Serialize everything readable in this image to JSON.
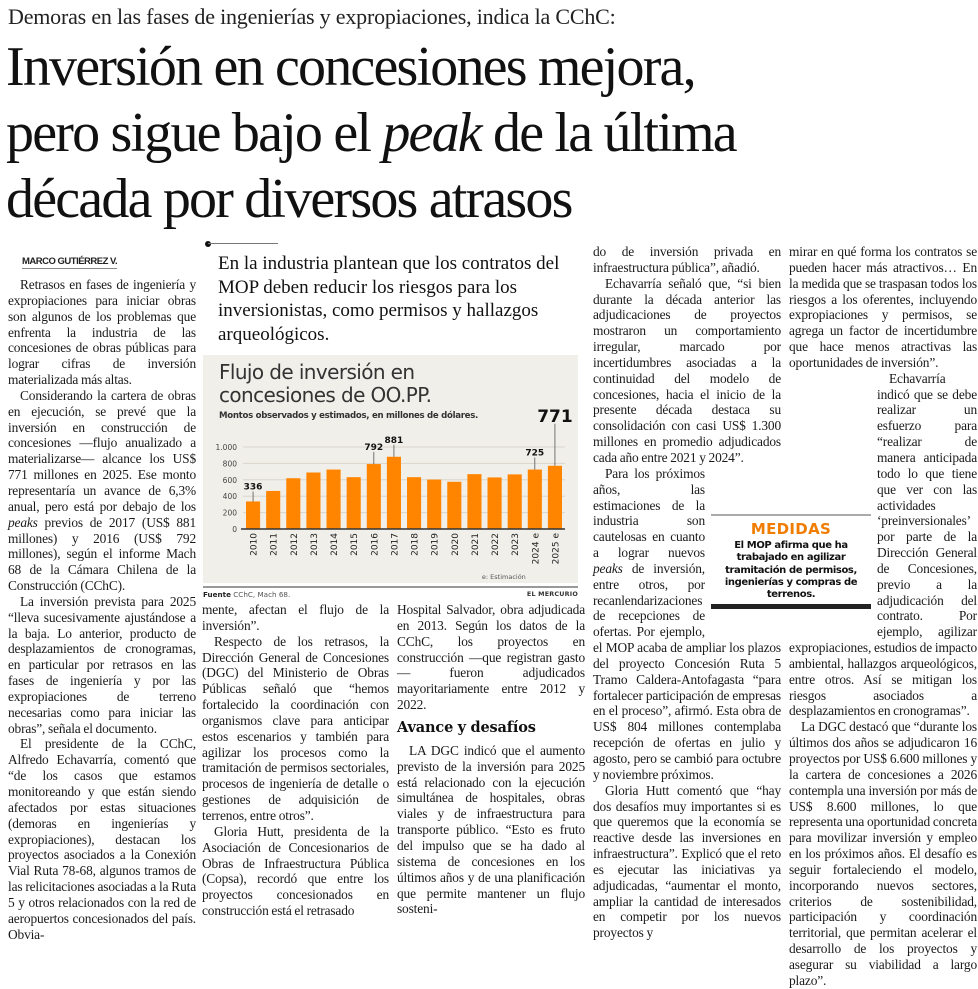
{
  "article": {
    "kicker": "Demoras en las fases de ingenierías y expropiaciones, indica la CChC:",
    "headline": {
      "line1": "Inversión en concesiones mejora,",
      "line2_pre": "pero sigue bajo el ",
      "line2_em": "peak",
      "line2_post": " de la última",
      "line3": "década por diversos atrasos"
    },
    "byline": "MARCO GUTIÉRREZ V.",
    "pullquote": "En la industria plantean que los contratos del MOP deben reducir los riesgos para los inversionistas, como permisos y hallazgos arqueológicos.",
    "paragraphs": {
      "p1": "Retrasos en fases de ingeniería y expropiaciones para iniciar obras son algunos de los problemas que enfrenta la industria de las concesiones de obras públicas para lograr cifras de inversión materializada más altas.",
      "p2_a": "Considerando la cartera de obras en ejecución, se prevé que la inversión en construcción de concesiones —flujo anualizado a materializarse— alcance los US$ 771 millones en 2025. Ese monto representaría un avance de 6,3% anual, pero está por debajo de los ",
      "p2_em": "peaks",
      "p2_b": " previos de 2017 (US$ 881 millones) y 2016 (US$ 792 millones), según el informe Mach 68 de la Cámara Chilena de la Construcción (CChC).",
      "p3": "La inversión prevista para 2025 “lleva sucesivamente ajustándose a la baja. Lo anterior, producto de desplazamientos de cronogramas, en particular por retrasos en las fases de ingeniería y por las expropiaciones de terreno necesarias como para iniciar las obras”, señala el documento.",
      "p4": "El presidente de la CChC, Alfredo Echavarría, comentó que “de los casos que estamos monitoreando y que están siendo afectados por estas situaciones (demoras en ingenierías y expropiaciones), destacan los proyectos asociados a la Conexión Vial Ruta 78-68, algunos tramos de las relicitaciones asociadas a la Ruta 5 y otros relacionados con la red de aeropuertos concesionados del país. Obviamente, afectan el flujo de la inversión”.",
      "p5": "Respecto de los retrasos, la Dirección General de Concesiones (DGC) del Ministerio de Obras Públicas señaló que “hemos fortalecido la coordinación con organismos clave para anticipar estos escenarios y también para agilizar los procesos como la tramitación de permisos sectoriales, procesos de ingeniería de detalle o gestiones de adquisición de terrenos, entre otros”.",
      "p6": "Gloria Hutt, presidenta de la Asociación de Concesionarios de Obras de Infraestructura Pública (Copsa), recordó que entre los proyectos concesionados en construcción está el retrasado Hospital Salvador, obra adjudicada en 2013. Según los datos de la CChC, los proyectos en construcción —que registran gasto— fueron adjudicados mayoritariamente entre 2012 y 2022.",
      "subhead": "Avance y desafíos",
      "p7": "LA DGC indicó que el aumento previsto de la inversión para 2025 está relacionado con la ejecución simultánea de hospitales, obras viales y de infraestructura para transporte público. “Esto es fruto del impulso que se ha dado al sistema de concesiones en los últimos años y de una planificación que permite mantener un flujo sostenido de inversión privada en infraestructura pública”, añadió.",
      "p8": "Echavarría señaló que, “si bien durante la década anterior las adjudicaciones de proyectos mostraron un comportamiento irregular, marcado por incertidumbres asociadas a la continuidad del modelo de concesiones, hacia el inicio de la presente década destaca su consolidación con casi US$ 1.300 millones en promedio adjudicados cada año entre 2021 y 2024”.",
      "p9_a": "Para los próximos años, las estimaciones de la industria son cautelosas en cuanto a lograr nuevos ",
      "p9_em": "peaks",
      "p9_b": " de inversión, entre otros, por recanlendarizaciones de recepciones de ofertas. Por ejemplo, el MOP acaba de ampliar los plazos del proyecto Concesión Ruta 5 Tramo Caldera-Antofagasta “para fortalecer participación de empresas en el proceso”, afirmó. Esta obra de US$ 804 millones contemplaba recepción de ofertas en julio y agosto, pero se cambió para octubre y noviembre próximos.",
      "p10": "Gloria Hutt comentó que “hay dos desafíos muy importantes si es que queremos que la economía se reactive desde las inversiones en infraestructura”. Explicó que el reto es ejecutar las iniciativas ya adjudicadas, “aumentar el monto, ampliar la cantidad de interesados en competir por los nuevos proyectos y mirar en qué forma los contratos se pueden hacer más atractivos… En la medida que se traspasan todos los riesgos a los oferentes, incluyendo expropiaciones y permisos, se agrega un factor de incertidumbre que hace menos atractivas las oportunidades de inversión”.",
      "p11": "Echavarría indicó que se debe realizar un esfuerzo para “realizar de manera anticipada todo lo que tiene que ver con las actividades ‘preinversionales’ por parte de la Dirección General de Concesiones, previo a la adjudicación del contrato. Por ejemplo, agilizar expropiaciones, estudios de impacto ambiental, hallazgos arqueológicos, entre otros. Así se mitigan los riesgos asociados a desplazamientos en cronogramas”.",
      "p12": "La DGC destacó que “durante los últimos dos años se adjudicaron 16 proyectos por US$ 6.600 millones y la cartera de concesiones a 2026 contempla una inversión por más de US$ 8.600 millones, lo que representa una oportunidad concreta para movilizar inversión y empleo en los próximos años. El desafío es seguir fortaleciendo el modelo, incorporando nuevos sectores, criterios de sostenibilidad, participación y coordinación territorial, que permitan acelerar el desarrollo de los proyectos y asegurar su viabilidad a largo plazo”."
    },
    "sidebar": {
      "title": "MEDIDAS",
      "body": "El MOP afirma que ha trabajado en agilizar tramitación de permisos, ingenierías y compras de terrenos."
    }
  },
  "colors": {
    "bar": "#ff8400",
    "chart_bg": "#f1efe9",
    "sidebar_title": "#f07d00"
  },
  "chart_data": {
    "type": "bar",
    "title": "Flujo de inversión en concesiones de OO.PP.",
    "title_line1": "Flujo de inversión en",
    "title_line2": "concesiones de OO.PP.",
    "subtitle": "Montos observados y estimados, en millones de dólares.",
    "xlabel": "",
    "ylabel": "",
    "ylim": [
      0,
      1000
    ],
    "yticks": [
      0,
      200,
      400,
      600,
      800,
      1000
    ],
    "ytick_labels": [
      "0",
      "200",
      "400",
      "600",
      "800",
      "1.000"
    ],
    "grid": true,
    "categories": [
      "2010",
      "2011",
      "2012",
      "2013",
      "2014",
      "2015",
      "2016",
      "2017",
      "2018",
      "2019",
      "2020",
      "2021",
      "2022",
      "2023",
      "2024 e",
      "2025 e"
    ],
    "values": [
      336,
      464,
      619,
      689,
      725,
      632,
      792,
      881,
      632,
      603,
      576,
      669,
      629,
      666,
      725,
      771
    ],
    "data_labels": [
      {
        "category": "2010",
        "label": "336",
        "emphasis": false
      },
      {
        "category": "2016",
        "label": "792",
        "emphasis": false
      },
      {
        "category": "2017",
        "label": "881",
        "emphasis": false
      },
      {
        "category": "2024 e",
        "label": "725",
        "emphasis": false
      },
      {
        "category": "2025 e",
        "label": "771",
        "emphasis": true
      }
    ],
    "note": "e: Estimación",
    "source_label": "Fuente",
    "source": "CChC, Mach 68.",
    "brand": "EL MERCURIO"
  }
}
